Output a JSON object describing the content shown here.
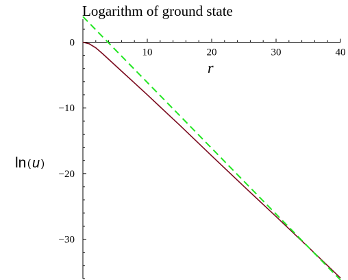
{
  "chart_data": {
    "type": "line",
    "title": "Logarithm of ground state",
    "xlabel": "r",
    "ylabel": {
      "func": "ln",
      "open": "(",
      "var": "u",
      "close": ")"
    },
    "xlim": [
      0,
      40
    ],
    "ylim": [
      -36,
      3.5
    ],
    "xticks": [
      10,
      20,
      30,
      40
    ],
    "xtick_labels": [
      "10",
      "20",
      "30",
      "40"
    ],
    "yticks": [
      0,
      -10,
      -20,
      -30
    ],
    "ytick_labels": [
      "0",
      "−10",
      "−20",
      "−30"
    ],
    "grid": false,
    "series": [
      {
        "style": "solid",
        "color": "#7a0a1e",
        "x": [
          0,
          1,
          2,
          3,
          4,
          5,
          6,
          8,
          10,
          12,
          15,
          20,
          25,
          30,
          35,
          40
        ],
        "y": [
          0,
          -0.25,
          -0.85,
          -1.7,
          -2.6,
          -3.5,
          -4.4,
          -6.2,
          -8.0,
          -9.85,
          -12.6,
          -17.3,
          -21.95,
          -26.55,
          -31.2,
          -35.9
        ]
      },
      {
        "style": "dashed",
        "color": "#22e622",
        "x": [
          0,
          40
        ],
        "y": [
          3.9,
          -36.2
        ]
      }
    ]
  }
}
